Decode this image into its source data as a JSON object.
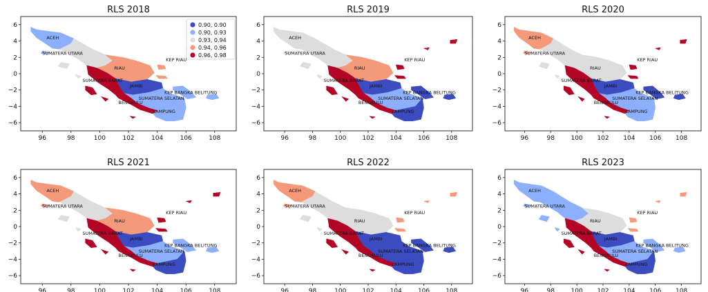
{
  "maps": [
    {
      "title": "RLS 2018",
      "colors": {
        "ACEH": "lb",
        "SUMATERA UTARA": "gr",
        "RIAU": "or",
        "SUMATERA BARAT": "dr",
        "JAMBI": "db",
        "KEP BANGKA BELITUNG": "lb",
        "SUMATERA SELATAN": "lb",
        "BENGKULU": "dr",
        "LAMPUNG": "lb",
        "KEP RIAU": "or"
      }
    },
    {
      "title": "RLS 2019",
      "colors": {
        "ACEH": "gr",
        "SUMATERA UTARA": "gr",
        "RIAU": "or",
        "SUMATERA BARAT": "dr",
        "JAMBI": "db",
        "KEP BANGKA BELITUNG": "db",
        "SUMATERA SELATAN": "lb",
        "BENGKULU": "dr",
        "LAMPUNG": "db",
        "KEP RIAU": "dr"
      }
    },
    {
      "title": "RLS 2020",
      "colors": {
        "ACEH": "or",
        "SUMATERA UTARA": "gr",
        "RIAU": "gr",
        "SUMATERA BARAT": "dr",
        "JAMBI": "db",
        "KEP BANGKA BELITUNG": "db",
        "SUMATERA SELATAN": "lb",
        "BENGKULU": "dr",
        "LAMPUNG": "lb",
        "KEP RIAU": "dr"
      }
    },
    {
      "title": "RLS 2021",
      "colors": {
        "ACEH": "or",
        "SUMATERA UTARA": "gr",
        "RIAU": "or",
        "SUMATERA BARAT": "dr",
        "JAMBI": "db",
        "KEP BANGKA BELITUNG": "lb",
        "SUMATERA SELATAN": "lb",
        "BENGKULU": "dr",
        "LAMPUNG": "db",
        "KEP RIAU": "dr"
      }
    },
    {
      "title": "RLS 2022",
      "colors": {
        "ACEH": "or",
        "SUMATERA UTARA": "gr",
        "RIAU": "gr",
        "SUMATERA BARAT": "dr",
        "JAMBI": "db",
        "KEP BANGKA BELITUNG": "db",
        "SUMATERA SELATAN": "db",
        "BENGKULU": "dr",
        "LAMPUNG": "db",
        "KEP RIAU": "or"
      }
    },
    {
      "title": "RLS 2023",
      "colors": {
        "ACEH": "lb",
        "SUMATERA UTARA": "lb",
        "RIAU": "gr",
        "SUMATERA BARAT": "dr",
        "JAMBI": "db",
        "KEP BANGKA BELITUNG": "lb",
        "SUMATERA SELATAN": "lb",
        "BENGKULU": "dr",
        "LAMPUNG": "db",
        "KEP RIAU": "or"
      }
    }
  ],
  "legend": [
    {
      "label": "0.90, 0.90",
      "key": "db"
    },
    {
      "label": "0.90, 0.93",
      "key": "lb"
    },
    {
      "label": "0.93, 0.94",
      "key": "gr"
    },
    {
      "label": "0.94, 0.96",
      "key": "or"
    },
    {
      "label": "0.96, 0.98",
      "key": "dr"
    }
  ],
  "palette": {
    "db": "#3b4cc0",
    "lb": "#8db0fe",
    "gr": "#dddddd",
    "or": "#f49a7b",
    "dr": "#b40426"
  },
  "x_ticks": [
    96,
    98,
    100,
    102,
    104,
    106,
    108
  ],
  "y_ticks": [
    6,
    4,
    2,
    0,
    -2,
    -4,
    -6
  ],
  "xlim": [
    94.5,
    109.5
  ],
  "ylim": [
    -7,
    7
  ]
}
